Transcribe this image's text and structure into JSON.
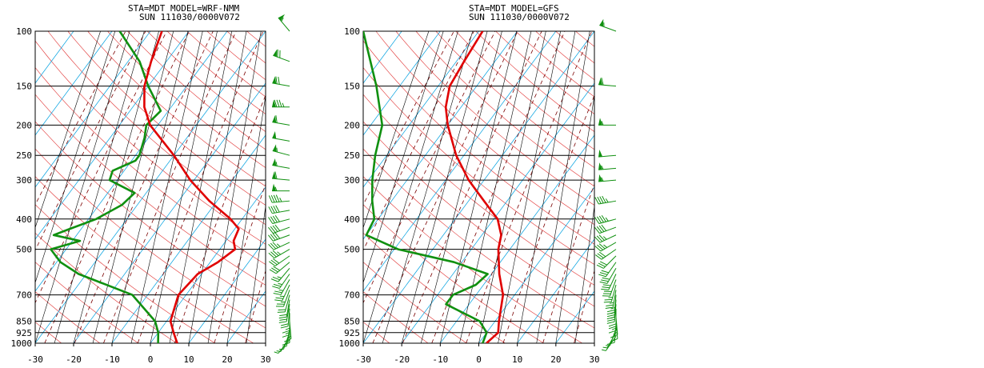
{
  "colors": {
    "background": "#ffffff",
    "isobar": "#000000",
    "isotherm": "#00a0e0",
    "dry_adiabat": "#e03030",
    "moist_adiabat": "#000000",
    "mixing_ratio": "#7a0000",
    "temperature": "#e00000",
    "dewpoint": "#109010",
    "wind_barb": "#109010"
  },
  "chart_data": [
    {
      "type": "skew-t",
      "header_line1": "STA=MDT    MODEL=WRF-NMM",
      "header_line2": "SUN 111030/0000V072",
      "pressure_levels": [
        100,
        150,
        200,
        250,
        300,
        400,
        500,
        700,
        850,
        925,
        1000
      ],
      "pressure_tick_labels": [
        "100",
        "150",
        "200",
        "250",
        "300",
        "400",
        "500",
        "700",
        "850",
        "925",
        "1000"
      ],
      "xlim": [
        -30,
        30
      ],
      "ylim_hpa": [
        1000,
        100
      ],
      "x_tick_labels": [
        "-30",
        "-20",
        "-10",
        "0",
        "10",
        "20",
        "30"
      ],
      "x_tick_values": [
        -30,
        -20,
        -10,
        0,
        10,
        20,
        30
      ],
      "temperature_profile": [
        [
          1000,
          7
        ],
        [
          925,
          4
        ],
        [
          850,
          1
        ],
        [
          700,
          -2
        ],
        [
          600,
          -1
        ],
        [
          550,
          2
        ],
        [
          500,
          4
        ],
        [
          470,
          2
        ],
        [
          430,
          1
        ],
        [
          400,
          -3
        ],
        [
          350,
          -12
        ],
        [
          300,
          -21
        ],
        [
          250,
          -30
        ],
        [
          200,
          -42
        ],
        [
          175,
          -47
        ],
        [
          150,
          -51
        ],
        [
          125,
          -54
        ],
        [
          100,
          -57
        ]
      ],
      "dewpoint_profile": [
        [
          1000,
          2
        ],
        [
          925,
          0
        ],
        [
          850,
          -3
        ],
        [
          700,
          -14
        ],
        [
          600,
          -32
        ],
        [
          550,
          -39
        ],
        [
          500,
          -44
        ],
        [
          470,
          -38
        ],
        [
          450,
          -46
        ],
        [
          430,
          -43
        ],
        [
          400,
          -38
        ],
        [
          360,
          -34
        ],
        [
          330,
          -33
        ],
        [
          300,
          -42
        ],
        [
          280,
          -43
        ],
        [
          260,
          -39
        ],
        [
          250,
          -39
        ],
        [
          220,
          -41
        ],
        [
          200,
          -43
        ],
        [
          180,
          -42
        ],
        [
          150,
          -50
        ],
        [
          125,
          -57
        ],
        [
          100,
          -68
        ]
      ],
      "wind_barbs": [
        [
          100,
          320,
          55
        ],
        [
          125,
          290,
          70
        ],
        [
          150,
          280,
          70
        ],
        [
          175,
          270,
          85
        ],
        [
          200,
          280,
          60
        ],
        [
          225,
          280,
          50
        ],
        [
          250,
          285,
          55
        ],
        [
          275,
          280,
          55
        ],
        [
          300,
          275,
          60
        ],
        [
          325,
          270,
          55
        ],
        [
          350,
          265,
          45
        ],
        [
          375,
          260,
          40
        ],
        [
          400,
          255,
          40
        ],
        [
          425,
          250,
          40
        ],
        [
          450,
          250,
          40
        ],
        [
          475,
          245,
          35
        ],
        [
          500,
          240,
          35
        ],
        [
          525,
          235,
          30
        ],
        [
          550,
          230,
          30
        ],
        [
          575,
          220,
          25
        ],
        [
          600,
          215,
          25
        ],
        [
          625,
          210,
          25
        ],
        [
          650,
          205,
          25
        ],
        [
          675,
          200,
          25
        ],
        [
          700,
          195,
          20
        ],
        [
          725,
          190,
          20
        ],
        [
          750,
          190,
          20
        ],
        [
          775,
          185,
          20
        ],
        [
          800,
          180,
          15
        ],
        [
          825,
          180,
          15
        ],
        [
          850,
          175,
          15
        ],
        [
          875,
          180,
          10
        ],
        [
          900,
          190,
          5
        ],
        [
          925,
          200,
          5
        ],
        [
          950,
          210,
          5
        ],
        [
          975,
          220,
          5
        ]
      ]
    },
    {
      "type": "skew-t",
      "header_line1": "STA=MDT    MODEL=GFS",
      "header_line2": "SUN 111030/0000V072",
      "pressure_levels": [
        100,
        150,
        200,
        250,
        300,
        400,
        500,
        700,
        850,
        925,
        1000
      ],
      "pressure_tick_labels": [
        "100",
        "150",
        "200",
        "250",
        "300",
        "400",
        "500",
        "700",
        "850",
        "925",
        "1000"
      ],
      "xlim": [
        -30,
        30
      ],
      "ylim_hpa": [
        1000,
        100
      ],
      "x_tick_labels": [
        "-30",
        "-20",
        "-10",
        "0",
        "10",
        "20",
        "30"
      ],
      "x_tick_values": [
        -30,
        -20,
        -10,
        0,
        10,
        20,
        30
      ],
      "temperature_profile": [
        [
          1000,
          2
        ],
        [
          925,
          3
        ],
        [
          850,
          1
        ],
        [
          700,
          -3
        ],
        [
          600,
          -8
        ],
        [
          500,
          -13
        ],
        [
          450,
          -15
        ],
        [
          400,
          -19
        ],
        [
          350,
          -26
        ],
        [
          300,
          -34
        ],
        [
          250,
          -42
        ],
        [
          200,
          -50
        ],
        [
          175,
          -54
        ],
        [
          150,
          -57
        ],
        [
          125,
          -58
        ],
        [
          100,
          -59
        ]
      ],
      "dewpoint_profile": [
        [
          1000,
          1
        ],
        [
          925,
          0
        ],
        [
          850,
          -4
        ],
        [
          750,
          -16
        ],
        [
          700,
          -16
        ],
        [
          650,
          -12
        ],
        [
          600,
          -11
        ],
        [
          550,
          -22
        ],
        [
          500,
          -39
        ],
        [
          450,
          -50
        ],
        [
          400,
          -51
        ],
        [
          350,
          -55
        ],
        [
          300,
          -59
        ],
        [
          250,
          -63
        ],
        [
          200,
          -67
        ],
        [
          150,
          -76
        ],
        [
          100,
          -90
        ]
      ],
      "wind_barbs": [
        [
          100,
          290,
          55
        ],
        [
          150,
          275,
          60
        ],
        [
          200,
          270,
          55
        ],
        [
          250,
          265,
          50
        ],
        [
          275,
          265,
          55
        ],
        [
          300,
          265,
          55
        ],
        [
          350,
          260,
          45
        ],
        [
          400,
          255,
          45
        ],
        [
          425,
          250,
          40
        ],
        [
          450,
          245,
          35
        ],
        [
          475,
          240,
          35
        ],
        [
          500,
          235,
          30
        ],
        [
          525,
          225,
          30
        ],
        [
          550,
          215,
          30
        ],
        [
          575,
          210,
          30
        ],
        [
          600,
          205,
          30
        ],
        [
          625,
          200,
          30
        ],
        [
          650,
          195,
          25
        ],
        [
          675,
          190,
          25
        ],
        [
          700,
          185,
          25
        ],
        [
          725,
          185,
          25
        ],
        [
          750,
          185,
          25
        ],
        [
          775,
          180,
          20
        ],
        [
          800,
          180,
          15
        ],
        [
          825,
          175,
          15
        ],
        [
          850,
          175,
          10
        ],
        [
          875,
          185,
          10
        ],
        [
          900,
          200,
          5
        ],
        [
          925,
          210,
          5
        ],
        [
          950,
          215,
          5
        ]
      ]
    }
  ]
}
